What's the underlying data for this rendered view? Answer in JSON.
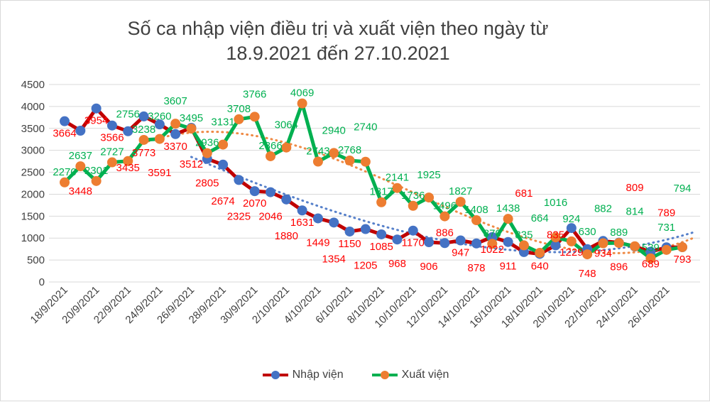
{
  "chart_data": {
    "type": "line",
    "title_line1": "Số ca nhập viện điều trị và xuất viện theo ngày từ",
    "title_line2": "18.9.2021 đến 27.10.2021",
    "ylim": [
      0,
      4500
    ],
    "yticks": [
      0,
      500,
      1000,
      1500,
      2000,
      2500,
      3000,
      3500,
      4000,
      4500
    ],
    "grid": true,
    "legend_position": "bottom",
    "x": [
      "18/9/2021",
      "19/9/2021",
      "20/9/2021",
      "21/9/2021",
      "22/9/2021",
      "23/9/2021",
      "24/9/2021",
      "25/9/2021",
      "26/9/2021",
      "27/9/2021",
      "28/9/2021",
      "29/9/2021",
      "30/9/2021",
      "1/10/2021",
      "2/10/2021",
      "3/10/2021",
      "4/10/2021",
      "5/10/2021",
      "6/10/2021",
      "7/10/2021",
      "8/10/2021",
      "9/10/2021",
      "10/10/2021",
      "11/10/2021",
      "12/10/2021",
      "13/10/2021",
      "14/10/2021",
      "15/10/2021",
      "16/10/2021",
      "17/10/2021",
      "18/10/2021",
      "19/10/2021",
      "20/10/2021",
      "21/10/2021",
      "22/10/2021",
      "23/10/2021",
      "24/10/2021",
      "25/10/2021",
      "26/10/2021",
      "27/10/2021"
    ],
    "series": [
      {
        "name": "Nhập viện",
        "line_color": "#C00000",
        "marker_color": "#4472C4",
        "label_color": "#FF0000",
        "trend_color": "#4472C4",
        "values": [
          3664,
          3448,
          3954,
          3566,
          3435,
          3773,
          3591,
          3370,
          3512,
          2805,
          2674,
          2325,
          2070,
          2046,
          1880,
          1631,
          1449,
          1354,
          1150,
          1205,
          1085,
          968,
          1170,
          906,
          886,
          947,
          878,
          1022,
          911,
          681,
          640,
          835,
          1229,
          748,
          934,
          896,
          809,
          689,
          789,
          793
        ]
      },
      {
        "name": "Xuất viện",
        "line_color": "#00B050",
        "marker_color": "#ED7D31",
        "label_color": "#00B050",
        "trend_color": "#ED7D31",
        "values": [
          2270,
          2637,
          2301,
          2727,
          2756,
          3238,
          3260,
          3607,
          3495,
          2936,
          3131,
          3708,
          3766,
          2866,
          3064,
          4069,
          2743,
          2940,
          2768,
          2740,
          1817,
          2141,
          1736,
          1925,
          1496,
          1827,
          1408,
          870,
          1438,
          835,
          664,
          1016,
          924,
          630,
          882,
          889,
          814,
          539,
          731,
          794
        ]
      }
    ]
  }
}
